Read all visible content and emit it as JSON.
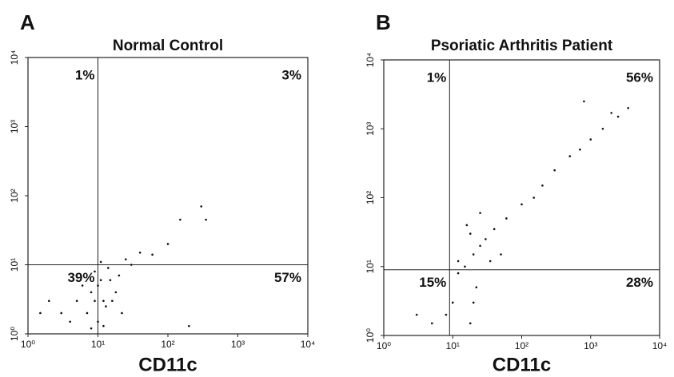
{
  "chart_data": [
    {
      "type": "scatter",
      "panel": "A",
      "title": "Normal Control",
      "x_label": "CD11c",
      "log_scale": true,
      "color": "#111111",
      "xlim": [
        1,
        10000
      ],
      "ylim": [
        1,
        10000
      ],
      "xticks": [
        {
          "value": 1,
          "label": "10⁰"
        },
        {
          "value": 10,
          "label": "10¹"
        },
        {
          "value": 100,
          "label": "10²"
        },
        {
          "value": 1000,
          "label": "10³"
        },
        {
          "value": 10000,
          "label": "10⁴"
        }
      ],
      "yticks": [
        {
          "value": 1,
          "label": "10⁰"
        },
        {
          "value": 10,
          "label": "10¹"
        },
        {
          "value": 100,
          "label": "10²"
        },
        {
          "value": 1000,
          "label": "10³"
        },
        {
          "value": 10000,
          "label": "10⁴"
        }
      ],
      "gate_x": 10,
      "gate_y": 10,
      "quadrants": [
        {
          "position": "upper-left",
          "label": "1%",
          "value": 1
        },
        {
          "position": "upper-right",
          "label": "3%",
          "value": 3
        },
        {
          "position": "lower-left",
          "label": "39%",
          "value": 39
        },
        {
          "position": "lower-right",
          "label": "57%",
          "value": 57
        }
      ],
      "x": [
        3,
        5,
        8,
        10,
        12,
        15,
        7,
        9,
        11,
        6,
        4,
        13,
        18,
        20,
        2,
        8,
        10,
        14,
        25,
        40,
        60,
        100,
        150,
        300,
        350,
        16,
        22,
        9,
        11,
        30,
        1.5,
        12,
        200
      ],
      "y": [
        2,
        3,
        4,
        5,
        3,
        6,
        2,
        8,
        6,
        5,
        1.5,
        2.5,
        4,
        7,
        3,
        1.2,
        1.5,
        9,
        12,
        15,
        14,
        20,
        45,
        70,
        45,
        3,
        2,
        3,
        11,
        10,
        2,
        1.3,
        1.3
      ]
    },
    {
      "type": "scatter",
      "panel": "B",
      "title": "Psoriatic Arthritis Patient",
      "x_label": "CD11c",
      "log_scale": true,
      "color": "#111111",
      "xlim": [
        1,
        10000
      ],
      "ylim": [
        1,
        10000
      ],
      "xticks": [
        {
          "value": 1,
          "label": "10⁰"
        },
        {
          "value": 10,
          "label": "10¹"
        },
        {
          "value": 100,
          "label": "10²"
        },
        {
          "value": 1000,
          "label": "10³"
        },
        {
          "value": 10000,
          "label": "10⁴"
        }
      ],
      "yticks": [
        {
          "value": 1,
          "label": "10⁰"
        },
        {
          "value": 10,
          "label": "10¹"
        },
        {
          "value": 100,
          "label": "10²"
        },
        {
          "value": 1000,
          "label": "10³"
        },
        {
          "value": 10000,
          "label": "10⁴"
        }
      ],
      "gate_x": 9,
      "gate_y": 9,
      "quadrants": [
        {
          "position": "upper-left",
          "label": "1%",
          "value": 1
        },
        {
          "position": "upper-right",
          "label": "56%",
          "value": 56
        },
        {
          "position": "lower-left",
          "label": "15%",
          "value": 15
        },
        {
          "position": "lower-right",
          "label": "28%",
          "value": 28
        }
      ],
      "x": [
        20,
        15,
        25,
        18,
        12,
        30,
        22,
        10,
        8,
        5,
        3,
        40,
        60,
        100,
        150,
        200,
        300,
        500,
        700,
        1000,
        1500,
        2500,
        3500,
        800,
        16,
        25,
        12,
        35,
        20,
        18,
        50,
        2000
      ],
      "y": [
        15,
        10,
        20,
        30,
        8,
        25,
        5,
        3,
        2,
        1.5,
        2,
        35,
        50,
        80,
        100,
        150,
        250,
        400,
        500,
        700,
        1000,
        1500,
        2000,
        2500,
        40,
        60,
        12,
        12,
        3,
        1.5,
        15,
        1700
      ]
    }
  ]
}
